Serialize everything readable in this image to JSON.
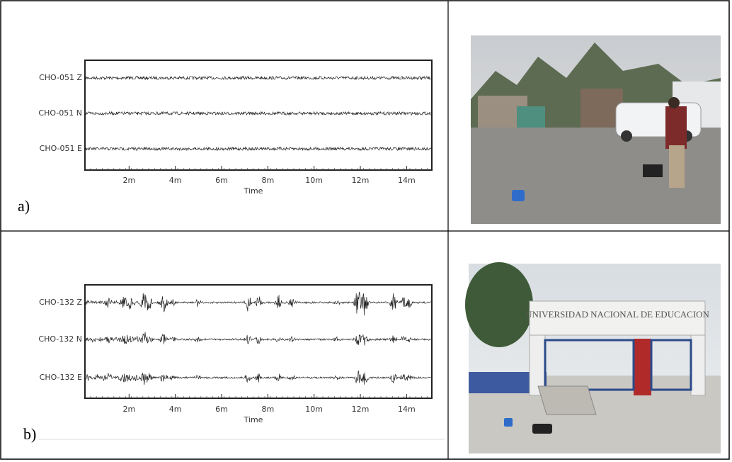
{
  "panels": [
    {
      "label": "a)",
      "traces": [
        "CHO-051 Z",
        "CHO-051 N",
        "CHO-051 E"
      ],
      "x_ticks": [
        "2m",
        "4m",
        "6m",
        "8m",
        "10m",
        "12m",
        "14m"
      ],
      "x_axis_label": "Time"
    },
    {
      "label": "b)",
      "traces": [
        "CHO-132 Z",
        "CHO-132 N",
        "CHO-132 E"
      ],
      "x_ticks": [
        "2m",
        "4m",
        "6m",
        "8m",
        "10m",
        "12m",
        "14m"
      ],
      "x_axis_label": "Time"
    }
  ]
}
